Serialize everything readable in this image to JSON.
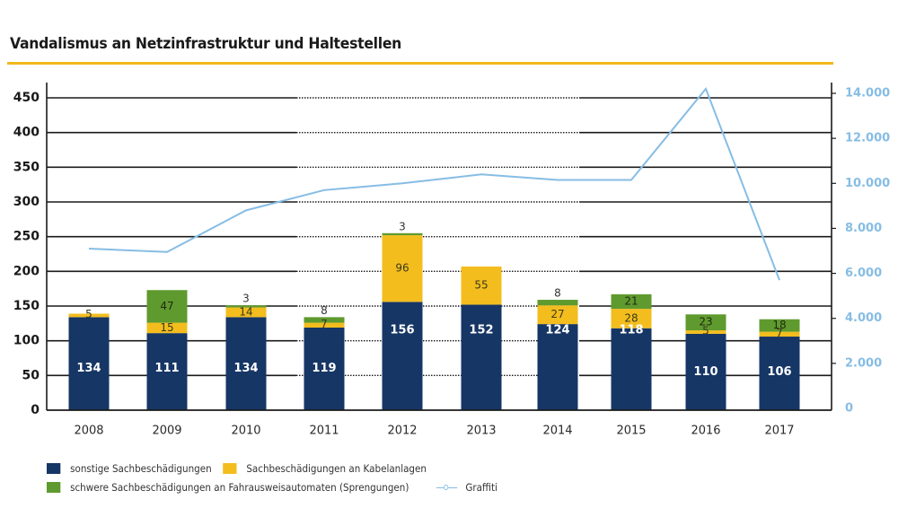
{
  "chart_data": {
    "type": "bar",
    "stacked": true,
    "title": "Vandalismus an Netzinfrastruktur und Haltestellen",
    "categories": [
      "2008",
      "2009",
      "2010",
      "2011",
      "2012",
      "2013",
      "2014",
      "2015",
      "2016",
      "2017"
    ],
    "series": [
      {
        "name": "sonstige Sachbeschädigungen",
        "color": "#163665",
        "label_color": "#ffffff",
        "axis": "left",
        "type": "bar",
        "values": [
          134,
          111,
          134,
          119,
          156,
          152,
          124,
          118,
          110,
          106
        ],
        "labels": [
          "134",
          "111",
          "134",
          "119",
          "156",
          "152",
          "124",
          "118",
          "110",
          "106"
        ]
      },
      {
        "name": "Sachbeschädigungen an Kabelanlagen",
        "color": "#f3bd1e",
        "label_color": "#3a3a1a",
        "axis": "left",
        "type": "bar",
        "values": [
          5,
          15,
          14,
          7,
          96,
          55,
          27,
          28,
          5,
          7
        ],
        "labels": [
          "5",
          "15",
          "14",
          "7",
          "96",
          "55",
          "27",
          "28",
          "5",
          "7"
        ]
      },
      {
        "name": "schwere Sachbeschädigungen an Fahrausweisautomaten (Sprengungen)",
        "color": "#5f9a2e",
        "label_color": "#1f2a10",
        "axis": "left",
        "type": "bar",
        "values": [
          0,
          47,
          3,
          8,
          3,
          0,
          8,
          21,
          23,
          18
        ],
        "labels": [
          "",
          "47",
          "3",
          "8",
          "3",
          "",
          "8",
          "21",
          "23",
          "18"
        ]
      },
      {
        "name": "Graffiti",
        "color": "#86bde4",
        "axis": "right",
        "type": "line",
        "values": [
          7100,
          6950,
          8800,
          9700,
          10000,
          10400,
          10150,
          10150,
          14200,
          5700
        ]
      }
    ],
    "left_axis": {
      "ylim": [
        0,
        450
      ],
      "ticks": [
        "0",
        "50",
        "100",
        "150",
        "200",
        "250",
        "300",
        "350",
        "400",
        "450"
      ],
      "tick_values": [
        0,
        50,
        100,
        150,
        200,
        250,
        300,
        350,
        400,
        450
      ]
    },
    "right_axis": {
      "ylim": [
        0,
        14000
      ],
      "ticks": [
        "0",
        "2.000",
        "4.000",
        "6.000",
        "8.000",
        "10.000",
        "12.000",
        "14.000"
      ],
      "tick_values": [
        0,
        2000,
        4000,
        6000,
        8000,
        10000,
        12000,
        14000
      ],
      "color": "#86bde4"
    },
    "grid": true,
    "legend_position": "bottom-left",
    "xlabel": "",
    "ylabel": ""
  },
  "legend": {
    "items": [
      {
        "label": "sonstige Sachbeschädigungen",
        "color": "#163665"
      },
      {
        "label": "Sachbeschädigungen an Kabelanlagen",
        "color": "#f3bd1e"
      },
      {
        "label": "schwere Sachbeschädigungen an Fahrausweisautomaten (Sprengungen)",
        "color": "#5f9a2e"
      },
      {
        "label": "Graffiti",
        "color": "#86bde4"
      }
    ]
  },
  "accent_color": "#f1b81c"
}
